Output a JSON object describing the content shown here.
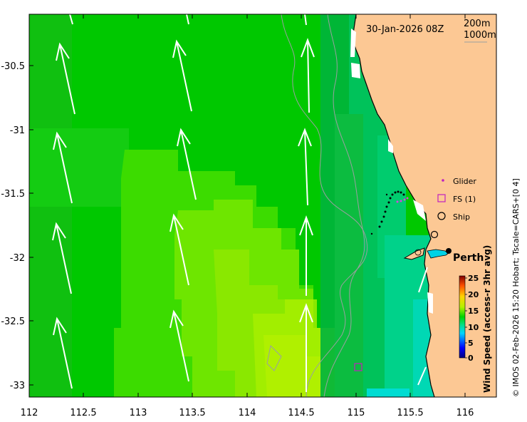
{
  "map": {
    "date_label": "30-Jan-2026 08Z",
    "isobath_labels": [
      "200m",
      "1000m"
    ],
    "place_label": "Perth",
    "credit": "© IMOS 02-Feb-2026 15:20 Hobart; Tscale=CARS+[0 4]",
    "lon_ticks": [
      "112",
      "112.5",
      "113",
      "113.5",
      "114",
      "114.5",
      "115",
      "115.5",
      "116"
    ],
    "lat_ticks": [
      "-30.5",
      "-31",
      "-31.5",
      "-32",
      "-32.5",
      "-33"
    ],
    "legend": {
      "glider": "Glider",
      "fs": "FS (1)",
      "ship": "Ship"
    },
    "colorbar": {
      "label": "Wind Speed (access-r 3hr avg)",
      "ticks": [
        "25",
        "20",
        "15",
        "10",
        "5",
        "0"
      ],
      "range": [
        0,
        25
      ]
    },
    "colors": {
      "land": "#fcc894",
      "wind_low": "#00c800",
      "wind_mid": "#5ee600",
      "wind_high": "#a8f000",
      "coastal": "#00d27d"
    }
  }
}
